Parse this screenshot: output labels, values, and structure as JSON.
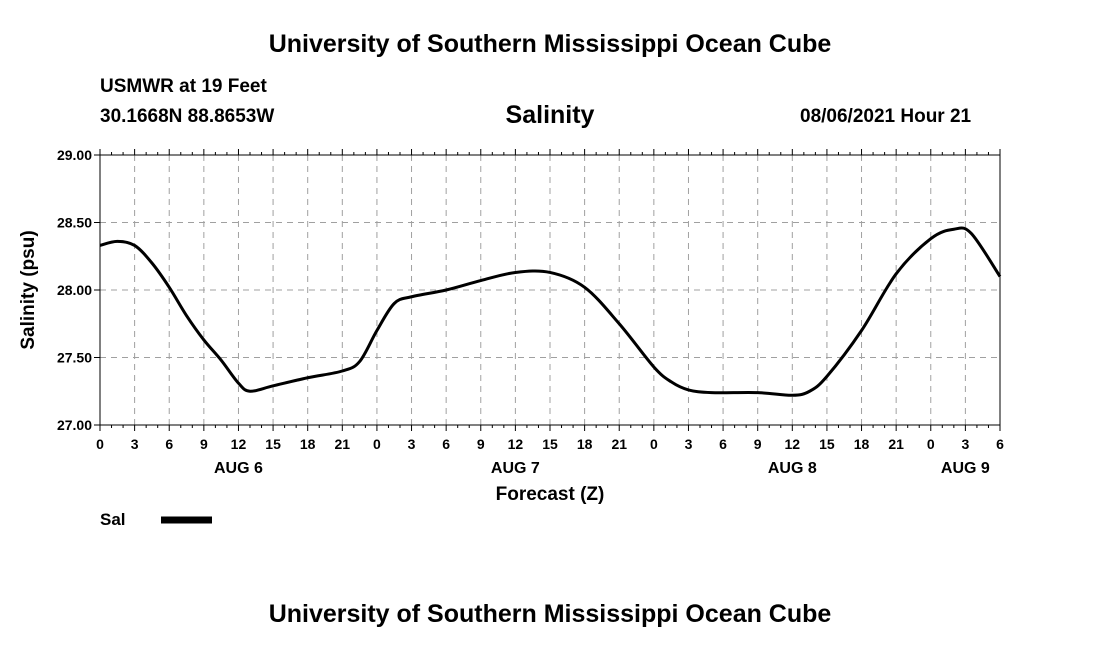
{
  "header": {
    "title_top": "University of Southern Mississippi Ocean Cube",
    "station": "USMWR at 19 Feet",
    "coords": "30.1668N  88.8653W",
    "variable": "Salinity",
    "datetime": "08/06/2021 Hour 21",
    "title_bottom": "University of Southern Mississippi Ocean Cube"
  },
  "legend": {
    "label": "Sal"
  },
  "colors": {
    "line": "#000000",
    "grid": "#a0a0a0"
  },
  "chart_data": {
    "type": "line",
    "title": "Salinity",
    "xlabel": "Forecast (Z)",
    "ylabel": "Salinity (psu)",
    "ylim": [
      27.0,
      29.0
    ],
    "yticks": [
      "27.00",
      "27.50",
      "28.00",
      "28.50",
      "29.00"
    ],
    "xlim_hours": [
      0,
      78
    ],
    "xticks": [
      "0",
      "3",
      "6",
      "9",
      "12",
      "15",
      "18",
      "21",
      "0",
      "3",
      "6",
      "9",
      "12",
      "15",
      "18",
      "21",
      "0",
      "3",
      "6",
      "9",
      "12",
      "15",
      "18",
      "21",
      "0",
      "3",
      "6"
    ],
    "date_labels": [
      {
        "label": "AUG 6",
        "hour": 12
      },
      {
        "label": "AUG 7",
        "hour": 36
      },
      {
        "label": "AUG 8",
        "hour": 60
      },
      {
        "label": "AUG 9",
        "hour": 75
      }
    ],
    "grid": true,
    "series": [
      {
        "name": "Sal",
        "x": [
          0,
          1.5,
          3,
          4.5,
          6,
          7.5,
          9,
          10.5,
          12,
          13,
          15,
          18,
          21,
          22.5,
          24,
          25.5,
          27,
          30,
          33,
          36,
          39,
          42,
          45,
          48,
          49.5,
          51,
          53,
          57,
          60,
          61.5,
          63,
          66,
          69,
          72,
          74,
          75.5,
          78
        ],
        "y": [
          28.33,
          28.36,
          28.33,
          28.2,
          28.02,
          27.81,
          27.63,
          27.48,
          27.31,
          27.25,
          27.29,
          27.35,
          27.4,
          27.47,
          27.7,
          27.9,
          27.95,
          28.0,
          28.07,
          28.13,
          28.13,
          28.02,
          27.75,
          27.43,
          27.32,
          27.26,
          27.24,
          27.24,
          27.22,
          27.25,
          27.36,
          27.7,
          28.12,
          28.38,
          28.45,
          28.42,
          28.1
        ]
      }
    ]
  }
}
